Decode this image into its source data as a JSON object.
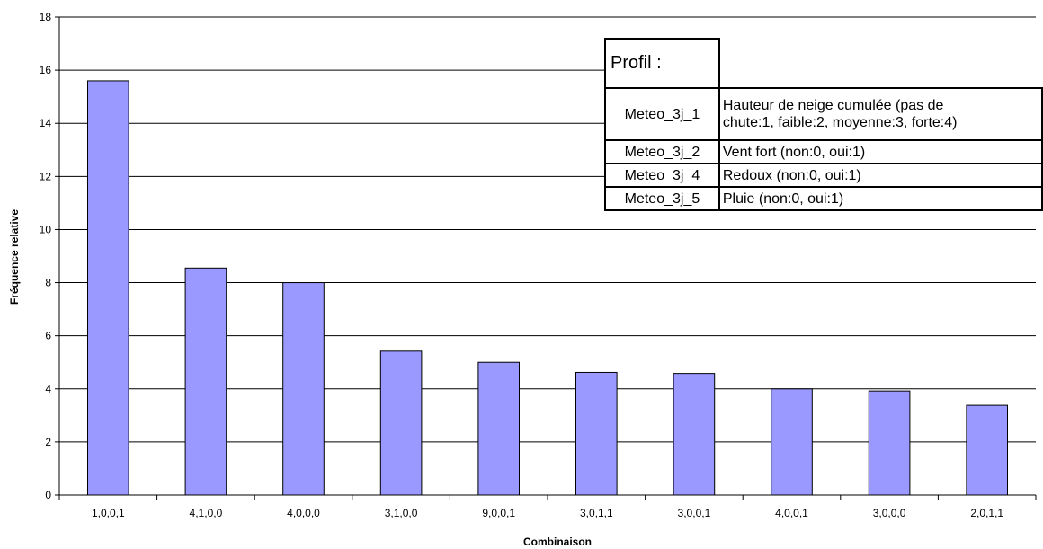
{
  "chart_data": {
    "type": "bar",
    "xlabel": "Combinaison",
    "ylabel": "Fréquence relative",
    "ylim": [
      0,
      18
    ],
    "yticks": [
      0,
      2,
      4,
      6,
      8,
      10,
      12,
      14,
      16,
      18
    ],
    "grid": true,
    "bar_color": "#9999ff",
    "categories": [
      "1,0,0,1",
      "4,1,0,0",
      "4,0,0,0",
      "3,1,0,0",
      "9,0,0,1",
      "3,0,1,1",
      "3,0,0,1",
      "4,0,0,1",
      "3,0,0,0",
      "2,0,1,1"
    ],
    "values": [
      15.6,
      8.55,
      8.0,
      5.42,
      5.0,
      4.62,
      4.58,
      4.0,
      3.92,
      3.38
    ]
  },
  "profile_table": {
    "title": "Profil :",
    "rows": [
      {
        "code": "Meteo_3j_1",
        "line1": "Hauteur de neige cumulée (pas de",
        "line2": "chute:1, faible:2, moyenne:3, forte:4)"
      },
      {
        "code": "Meteo_3j_2",
        "line1": "Vent fort (non:0, oui:1)"
      },
      {
        "code": "Meteo_3j_4",
        "line1": "Redoux (non:0, oui:1)"
      },
      {
        "code": "Meteo_3j_5",
        "line1": "Pluie (non:0, oui:1)"
      }
    ]
  }
}
